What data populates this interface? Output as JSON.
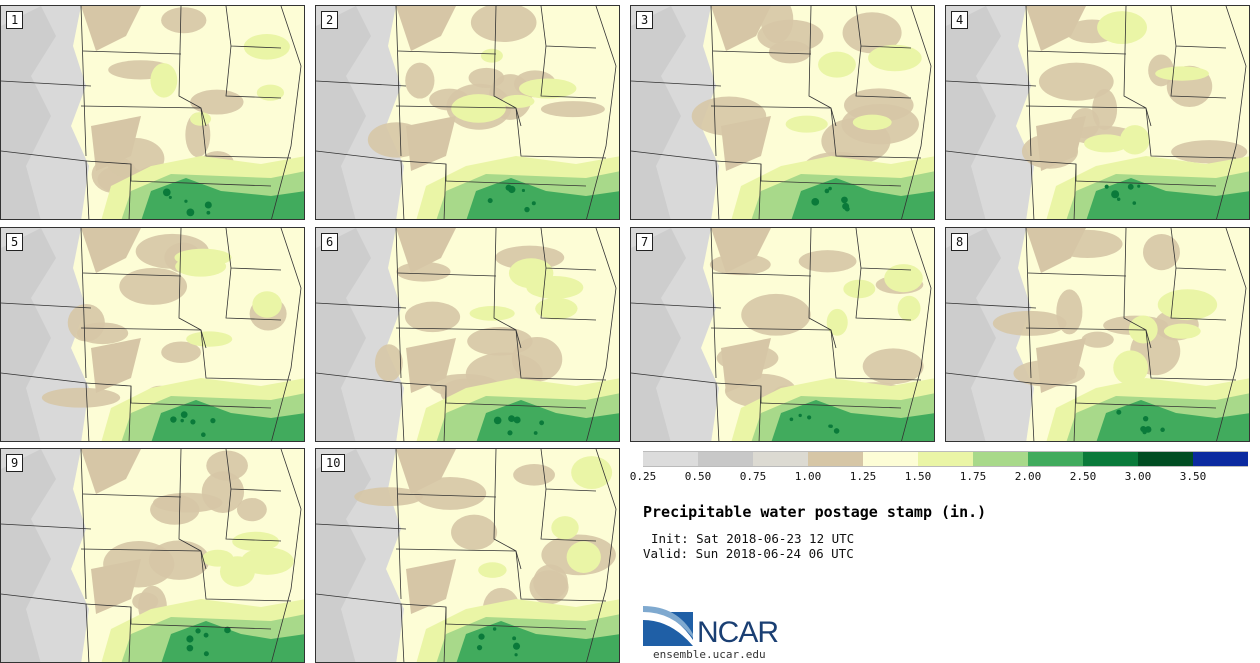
{
  "stamps": [
    {
      "label": "1",
      "variant": 0
    },
    {
      "label": "2",
      "variant": 1
    },
    {
      "label": "3",
      "variant": 2
    },
    {
      "label": "4",
      "variant": 3
    },
    {
      "label": "5",
      "variant": 4
    },
    {
      "label": "6",
      "variant": 5
    },
    {
      "label": "7",
      "variant": 6
    },
    {
      "label": "8",
      "variant": 7
    },
    {
      "label": "9",
      "variant": 8
    },
    {
      "label": "10",
      "variant": 9
    }
  ],
  "colorbar": {
    "colors": [
      "#dcdcdc",
      "#c8c8c8",
      "#dcdad2",
      "#d6c6a6",
      "#fdfdd6",
      "#eaf5a6",
      "#a8d98a",
      "#41ab5d",
      "#0a7a3a",
      "#004d22",
      "#0b2aa0"
    ],
    "ticks": [
      "0.25",
      "0.50",
      "0.75",
      "1.00",
      "1.25",
      "1.50",
      "1.75",
      "2.00",
      "2.50",
      "3.00",
      "3.50"
    ]
  },
  "title": "Precipitable water postage stamp (in.)",
  "init": "Init: Sat 2018-06-23 12 UTC",
  "valid": "Valid: Sun 2018-06-24 06 UTC",
  "logo": {
    "name": "NCAR",
    "url": "ensemble.ucar.edu"
  }
}
